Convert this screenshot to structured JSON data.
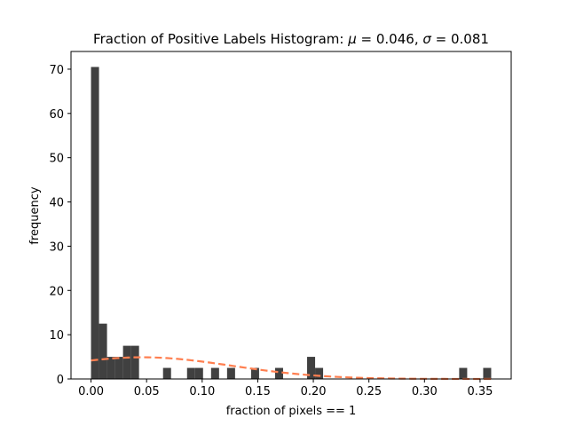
{
  "chart_data": {
    "type": "bar",
    "title": "Fraction of Positive Labels Histogram: μ = 0.046, σ = 0.081",
    "title_parts": {
      "prefix": "Fraction of Positive Labels Histogram",
      "mu_symbol": "μ",
      "mu_value": "0.046",
      "sigma_symbol": "σ",
      "sigma_value": "0.081"
    },
    "xlabel": "fraction of pixels == 1",
    "ylabel": "frequency",
    "xlim": [
      -0.018,
      0.378
    ],
    "ylim": [
      0,
      74
    ],
    "xticks": [
      {
        "value": 0.0,
        "label": "0.00"
      },
      {
        "value": 0.05,
        "label": "0.05"
      },
      {
        "value": 0.1,
        "label": "0.10"
      },
      {
        "value": 0.15,
        "label": "0.15"
      },
      {
        "value": 0.2,
        "label": "0.20"
      },
      {
        "value": 0.25,
        "label": "0.25"
      },
      {
        "value": 0.3,
        "label": "0.30"
      },
      {
        "value": 0.35,
        "label": "0.35"
      }
    ],
    "yticks": [
      {
        "value": 0,
        "label": "0"
      },
      {
        "value": 10,
        "label": "10"
      },
      {
        "value": 20,
        "label": "20"
      },
      {
        "value": 30,
        "label": "30"
      },
      {
        "value": 40,
        "label": "40"
      },
      {
        "value": 50,
        "label": "50"
      },
      {
        "value": 60,
        "label": "60"
      },
      {
        "value": 70,
        "label": "70"
      }
    ],
    "bin_width": 0.0072,
    "bins": [
      {
        "x": 0.0,
        "value": 70.5
      },
      {
        "x": 0.0072,
        "value": 12.5
      },
      {
        "x": 0.0144,
        "value": 5
      },
      {
        "x": 0.0216,
        "value": 5
      },
      {
        "x": 0.0288,
        "value": 7.5
      },
      {
        "x": 0.036,
        "value": 7.5
      },
      {
        "x": 0.0648,
        "value": 2.5
      },
      {
        "x": 0.0864,
        "value": 2.5
      },
      {
        "x": 0.0936,
        "value": 2.5
      },
      {
        "x": 0.108,
        "value": 2.5
      },
      {
        "x": 0.1224,
        "value": 2.5
      },
      {
        "x": 0.144,
        "value": 2.5
      },
      {
        "x": 0.1656,
        "value": 2.5
      },
      {
        "x": 0.1944,
        "value": 5
      },
      {
        "x": 0.2016,
        "value": 2.5
      },
      {
        "x": 0.3312,
        "value": 2.5
      },
      {
        "x": 0.3528,
        "value": 2.5
      }
    ],
    "bar_color": "#404040",
    "curve": {
      "mu": 0.046,
      "sigma": 0.081,
      "peak": 4.9,
      "x_range": [
        0.0,
        0.36
      ],
      "style": "dashed",
      "color": "#ff7f50"
    }
  }
}
